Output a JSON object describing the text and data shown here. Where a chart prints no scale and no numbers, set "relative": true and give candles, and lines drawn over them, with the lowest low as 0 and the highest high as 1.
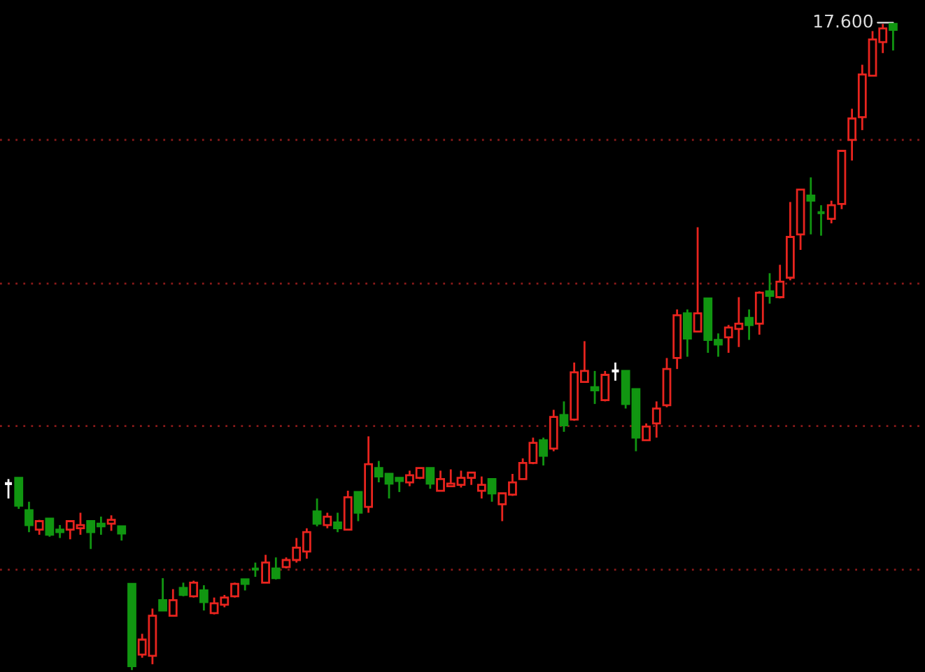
{
  "chart_data": {
    "type": "candlestick",
    "relative": true,
    "categories": [
      null,
      null,
      null,
      null,
      null,
      null,
      null,
      null,
      null,
      null,
      null,
      null,
      null,
      null,
      null,
      null,
      null,
      null,
      null,
      null,
      null,
      null,
      null,
      null,
      null,
      null,
      null,
      null,
      null,
      null,
      null,
      null,
      null,
      null,
      null,
      null,
      null,
      null,
      null,
      null,
      null,
      null,
      null,
      null,
      null,
      null,
      null,
      null,
      null,
      null,
      null,
      null,
      null,
      null,
      null,
      null,
      null,
      null,
      null,
      null,
      null,
      null,
      null,
      null,
      null,
      null,
      null,
      null,
      null,
      null,
      null,
      null,
      null,
      null,
      null,
      null,
      null,
      null,
      null,
      null,
      null,
      null,
      null,
      null,
      null,
      null,
      null
    ],
    "ohlc": [
      [
        0.288,
        0.295,
        0.265,
        0.288
      ],
      [
        0.297,
        0.297,
        0.249,
        0.254
      ],
      [
        0.247,
        0.26,
        0.213,
        0.224
      ],
      [
        0.217,
        0.232,
        0.209,
        0.23
      ],
      [
        0.234,
        0.234,
        0.206,
        0.209
      ],
      [
        0.217,
        0.224,
        0.204,
        0.213
      ],
      [
        0.217,
        0.23,
        0.202,
        0.23
      ],
      [
        0.219,
        0.243,
        0.209,
        0.224
      ],
      [
        0.23,
        0.23,
        0.187,
        0.213
      ],
      [
        0.226,
        0.237,
        0.209,
        0.222
      ],
      [
        0.226,
        0.239,
        0.215,
        0.232
      ],
      [
        0.222,
        0.222,
        0.2,
        0.211
      ],
      [
        0.133,
        0.133,
        0,
        0.006
      ],
      [
        0.024,
        0.056,
        0.019,
        0.047
      ],
      [
        0.022,
        0.095,
        0.009,
        0.084
      ],
      [
        0.108,
        0.142,
        0.092,
        0.092
      ],
      [
        0.084,
        0.125,
        0.084,
        0.108
      ],
      [
        0.127,
        0.135,
        0.114,
        0.116
      ],
      [
        0.114,
        0.138,
        0.112,
        0.135
      ],
      [
        0.123,
        0.131,
        0.092,
        0.105
      ],
      [
        0.088,
        0.112,
        0.086,
        0.103
      ],
      [
        0.101,
        0.116,
        0.097,
        0.112
      ],
      [
        0.114,
        0.135,
        0.112,
        0.133
      ],
      [
        0.14,
        0.14,
        0.123,
        0.133
      ],
      [
        0.157,
        0.166,
        0.144,
        0.155
      ],
      [
        0.135,
        0.178,
        0.135,
        0.166
      ],
      [
        0.157,
        0.174,
        0.14,
        0.142
      ],
      [
        0.159,
        0.174,
        0.157,
        0.17
      ],
      [
        0.17,
        0.204,
        0.166,
        0.189
      ],
      [
        0.183,
        0.219,
        0.172,
        0.213
      ],
      [
        0.245,
        0.265,
        0.222,
        0.226
      ],
      [
        0.224,
        0.243,
        0.219,
        0.237
      ],
      [
        0.228,
        0.243,
        0.213,
        0.219
      ],
      [
        0.217,
        0.277,
        0.217,
        0.267
      ],
      [
        0.275,
        0.275,
        0.23,
        0.243
      ],
      [
        0.252,
        0.361,
        0.243,
        0.318
      ],
      [
        0.312,
        0.323,
        0.29,
        0.299
      ],
      [
        0.303,
        0.303,
        0.265,
        0.288
      ],
      [
        0.297,
        0.297,
        0.275,
        0.292
      ],
      [
        0.29,
        0.308,
        0.284,
        0.301
      ],
      [
        0.297,
        0.312,
        0.295,
        0.312
      ],
      [
        0.312,
        0.312,
        0.28,
        0.288
      ],
      [
        0.277,
        0.308,
        0.277,
        0.295
      ],
      [
        0.284,
        0.31,
        0.284,
        0.288
      ],
      [
        0.286,
        0.308,
        0.282,
        0.297
      ],
      [
        0.297,
        0.305,
        0.286,
        0.305
      ],
      [
        0.277,
        0.299,
        0.265,
        0.286
      ],
      [
        0.295,
        0.295,
        0.26,
        0.273
      ],
      [
        0.256,
        0.273,
        0.23,
        0.273
      ],
      [
        0.271,
        0.303,
        0.269,
        0.29
      ],
      [
        0.295,
        0.327,
        0.295,
        0.32
      ],
      [
        0.32,
        0.359,
        0.318,
        0.351
      ],
      [
        0.355,
        0.359,
        0.316,
        0.331
      ],
      [
        0.342,
        0.402,
        0.338,
        0.391
      ],
      [
        0.394,
        0.415,
        0.368,
        0.378
      ],
      [
        0.387,
        0.475,
        0.385,
        0.46
      ],
      [
        0.445,
        0.508,
        0.445,
        0.462
      ],
      [
        0.437,
        0.462,
        0.411,
        0.432
      ],
      [
        0.417,
        0.462,
        0.415,
        0.456
      ],
      [
        0.462,
        0.475,
        0.447,
        0.462
      ],
      [
        0.462,
        0.462,
        0.404,
        0.411
      ],
      [
        0.434,
        0.434,
        0.338,
        0.359
      ],
      [
        0.355,
        0.381,
        0.355,
        0.376
      ],
      [
        0.381,
        0.415,
        0.359,
        0.404
      ],
      [
        0.409,
        0.482,
        0.406,
        0.465
      ],
      [
        0.482,
        0.557,
        0.465,
        0.548
      ],
      [
        0.551,
        0.557,
        0.484,
        0.512
      ],
      [
        0.523,
        0.684,
        0.523,
        0.551
      ],
      [
        0.574,
        0.574,
        0.49,
        0.51
      ],
      [
        0.51,
        0.52,
        0.484,
        0.503
      ],
      [
        0.514,
        0.533,
        0.49,
        0.529
      ],
      [
        0.527,
        0.576,
        0.499,
        0.535
      ],
      [
        0.544,
        0.557,
        0.51,
        0.533
      ],
      [
        0.535,
        0.585,
        0.518,
        0.583
      ],
      [
        0.585,
        0.613,
        0.566,
        0.578
      ],
      [
        0.576,
        0.626,
        0.574,
        0.6
      ],
      [
        0.606,
        0.723,
        0.602,
        0.669
      ],
      [
        0.673,
        0.742,
        0.649,
        0.742
      ],
      [
        0.733,
        0.761,
        0.673,
        0.725
      ],
      [
        0.708,
        0.718,
        0.671,
        0.705
      ],
      [
        0.697,
        0.725,
        0.69,
        0.718
      ],
      [
        0.72,
        0.802,
        0.712,
        0.802
      ],
      [
        0.819,
        0.867,
        0.787,
        0.852
      ],
      [
        0.854,
        0.935,
        0.834,
        0.92
      ],
      [
        0.918,
        0.987,
        0.918,
        0.974
      ],
      [
        0.97,
        0.998,
        0.953,
        0.991
      ],
      [
        0.998,
        1,
        0.957,
        0.989
      ]
    ],
    "colors": [
      "#ffffff",
      "#119611",
      "#119611",
      "#e8241e",
      "#119611",
      "#119611",
      "#e8241e",
      "#e8241e",
      "#119611",
      "#119611",
      "#e8241e",
      "#119611",
      "#119611",
      "#e8241e",
      "#e8241e",
      "#119611",
      "#e8241e",
      "#119611",
      "#e8241e",
      "#119611",
      "#e8241e",
      "#e8241e",
      "#e8241e",
      "#119611",
      "#119611",
      "#e8241e",
      "#119611",
      "#e8241e",
      "#e8241e",
      "#e8241e",
      "#119611",
      "#e8241e",
      "#119611",
      "#e8241e",
      "#119611",
      "#e8241e",
      "#119611",
      "#119611",
      "#119611",
      "#e8241e",
      "#e8241e",
      "#119611",
      "#e8241e",
      "#e8241e",
      "#e8241e",
      "#e8241e",
      "#e8241e",
      "#119611",
      "#e8241e",
      "#e8241e",
      "#e8241e",
      "#e8241e",
      "#119611",
      "#e8241e",
      "#119611",
      "#e8241e",
      "#e8241e",
      "#119611",
      "#e8241e",
      "#ffffff",
      "#119611",
      "#119611",
      "#e8241e",
      "#e8241e",
      "#e8241e",
      "#e8241e",
      "#119611",
      "#e8241e",
      "#119611",
      "#119611",
      "#e8241e",
      "#e8241e",
      "#119611",
      "#e8241e",
      "#119611",
      "#e8241e",
      "#e8241e",
      "#e8241e",
      "#119611",
      "#119611",
      "#e8241e",
      "#e8241e",
      "#e8241e",
      "#e8241e",
      "#e8241e",
      "#e8241e",
      "#119611"
    ],
    "ref_lines": [
      {
        "axis": "y",
        "value": 0.819,
        "color": "#8b1a1a",
        "line_style": "dotted"
      },
      {
        "axis": "y",
        "value": 0.597,
        "color": "#8b1a1a",
        "line_style": "dotted"
      },
      {
        "axis": "y",
        "value": 0.377,
        "color": "#8b1a1a",
        "line_style": "dotted"
      },
      {
        "axis": "y",
        "value": 0.155,
        "color": "#8b1a1a",
        "line_style": "dotted"
      }
    ],
    "annotations": [
      "17.600"
    ]
  }
}
